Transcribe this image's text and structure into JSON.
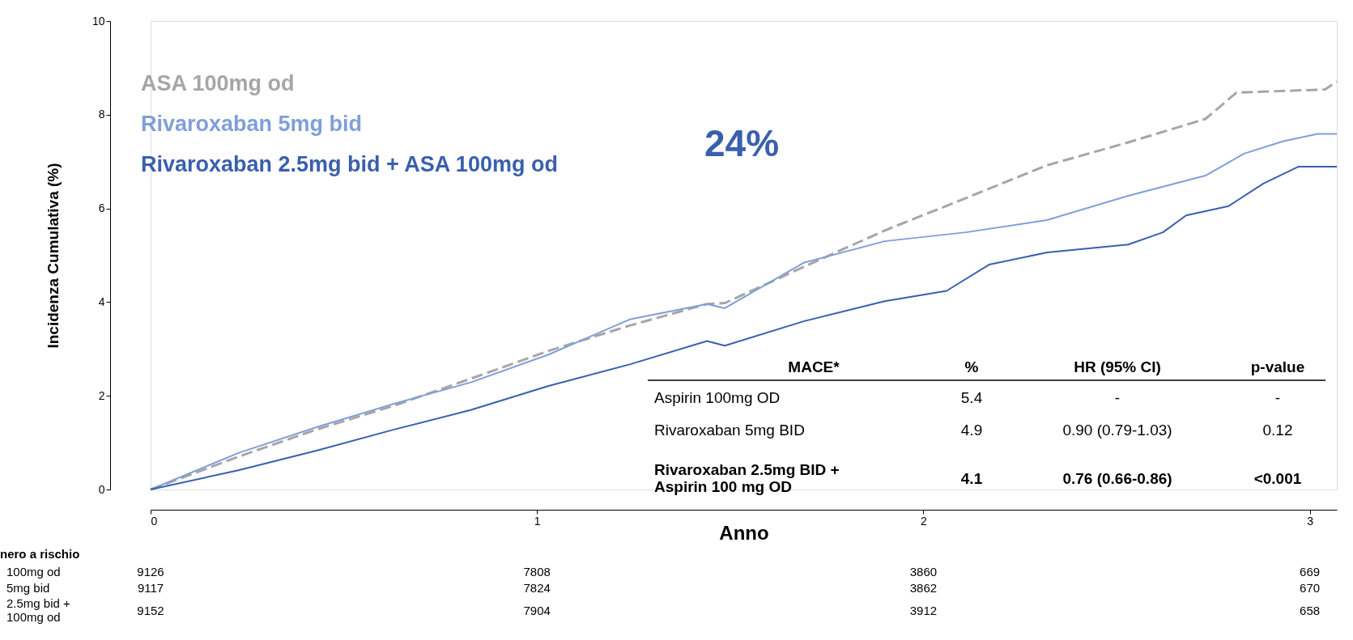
{
  "chart_data": {
    "type": "line",
    "xlabel": "Anno",
    "ylabel": "Incidenza Cumulativa (%)",
    "xlim": [
      0,
      3.07
    ],
    "xticks": [
      0,
      1,
      2,
      3
    ],
    "ylim": [
      0,
      10
    ],
    "yticks": [
      0,
      2,
      4,
      6,
      8,
      10
    ],
    "grid": false,
    "legend": "top left",
    "marker": "none",
    "series": [
      {
        "name": "ASA 100mg od",
        "color": "#a6a6a6",
        "line_style": "dashed",
        "x": [
          0,
          0.227,
          0.429,
          0.63,
          0.83,
          1.03,
          1.24,
          1.44,
          1.486,
          1.69,
          1.9,
          2.11,
          2.32,
          2.53,
          2.73,
          2.81,
          3.04,
          3.07
        ],
        "values": [
          0,
          0.7,
          1.28,
          1.79,
          2.37,
          2.96,
          3.5,
          3.96,
          3.98,
          4.75,
          5.53,
          6.22,
          6.92,
          7.41,
          7.91,
          8.47,
          8.54,
          8.71
        ]
      },
      {
        "name": "Rivaroxaban 5mg bid",
        "color": "#7f9fd8",
        "line_style": "solid",
        "x": [
          0,
          0.227,
          0.429,
          0.63,
          0.83,
          1.03,
          1.24,
          1.44,
          1.486,
          1.69,
          1.9,
          2.11,
          2.32,
          2.53,
          2.73,
          2.83,
          2.93,
          3.02,
          3.07
        ],
        "values": [
          0,
          0.78,
          1.33,
          1.83,
          2.29,
          2.88,
          3.63,
          3.96,
          3.87,
          4.84,
          5.3,
          5.49,
          5.75,
          6.27,
          6.7,
          7.17,
          7.43,
          7.59,
          7.59
        ]
      },
      {
        "name": "Rivaroxaban 2.5mg bid  + ASA 100mg od",
        "color": "#3a5fae",
        "line_style": "solid",
        "x": [
          0,
          0.227,
          0.429,
          0.63,
          0.83,
          1.03,
          1.24,
          1.44,
          1.486,
          1.69,
          1.9,
          2.06,
          2.17,
          2.32,
          2.53,
          2.62,
          2.68,
          2.79,
          2.88,
          2.97,
          3.07
        ],
        "values": [
          0,
          0.41,
          0.83,
          1.28,
          1.7,
          2.21,
          2.67,
          3.17,
          3.07,
          3.59,
          4.02,
          4.24,
          4.8,
          5.06,
          5.23,
          5.49,
          5.85,
          6.05,
          6.53,
          6.89,
          6.89
        ]
      }
    ],
    "annotations": [
      "24%",
      "MACE*",
      "%",
      "HR (95% CI)",
      "p-value",
      "Aspirin 100mg OD",
      "5.4",
      "-",
      "-",
      "Rivaroxaban  5mg BID",
      "4.9",
      "0.90 (0.79-1.03)",
      "0.12",
      "Rivaroxaban 2.5mg BID +\nAspirin 100 mg OD",
      "4.1",
      "0.76 (0.66-0.86)",
      "<0.001",
      "nero a rischio",
      "100mg od",
      "5mg bid",
      "2.5mg bid +\n100mg od",
      "9126",
      "7808",
      "3860",
      "669",
      "9117",
      "7824",
      "3862",
      "670",
      "9152",
      "7904",
      "3912",
      "658"
    ]
  }
}
